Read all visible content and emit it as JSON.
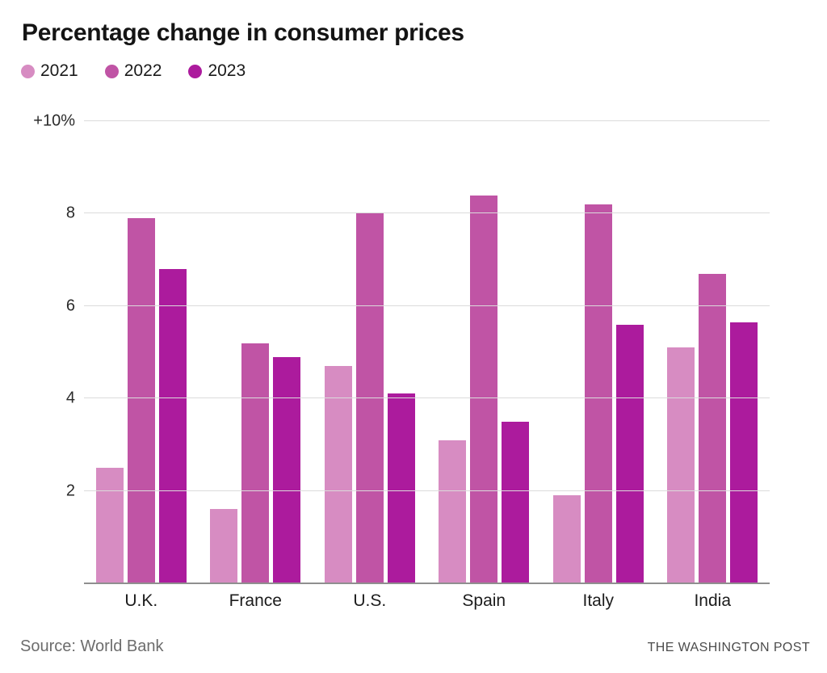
{
  "title": "Percentage change in consumer prices",
  "chart_data": {
    "type": "bar",
    "title": "Percentage change in consumer prices",
    "categories": [
      "U.K.",
      "France",
      "U.S.",
      "Spain",
      "Italy",
      "India"
    ],
    "series": [
      {
        "name": "2021",
        "color": "#d78cc2",
        "values": [
          2.5,
          1.6,
          4.7,
          3.1,
          1.9,
          5.1
        ]
      },
      {
        "name": "2022",
        "color": "#c054a5",
        "values": [
          7.9,
          5.2,
          8.0,
          8.4,
          8.2,
          6.7
        ]
      },
      {
        "name": "2023",
        "color": "#ac1b9d",
        "values": [
          6.8,
          4.9,
          4.1,
          3.5,
          5.6,
          5.65
        ]
      }
    ],
    "ylabel": "",
    "xlabel": "",
    "ylim": [
      0,
      10
    ],
    "yticks": [
      {
        "value": 2,
        "label": "2"
      },
      {
        "value": 4,
        "label": "4"
      },
      {
        "value": 6,
        "label": "6"
      },
      {
        "value": 8,
        "label": "8"
      },
      {
        "value": 10,
        "label": "+10%"
      }
    ],
    "grid": true,
    "legend_position": "top-left"
  },
  "footer": {
    "source": "Source: World Bank",
    "publisher": "THE WASHINGTON POST"
  }
}
